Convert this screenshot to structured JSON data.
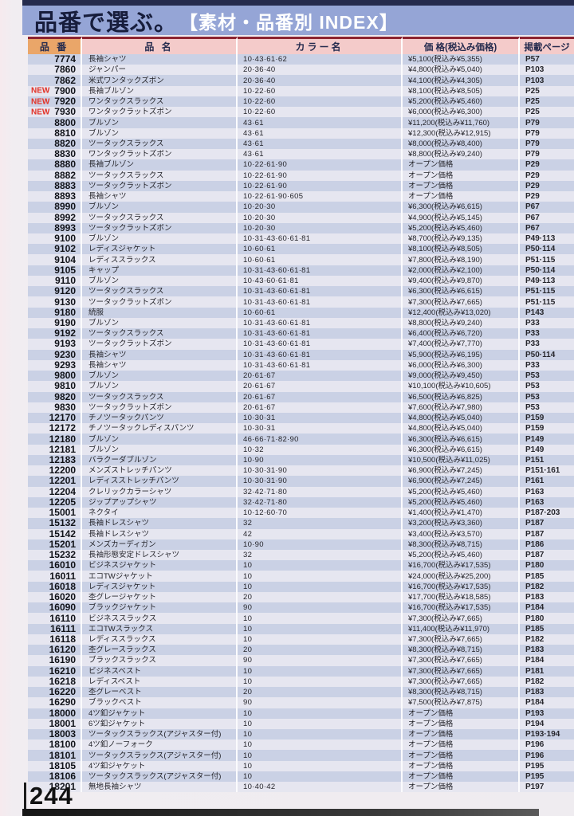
{
  "banner": {
    "title": "品番で選ぶ。",
    "subtitle": "【素材・品番別 INDEX】"
  },
  "footer": {
    "page_number": "244"
  },
  "colors": {
    "topbar": "#252b4d",
    "banner_bg": "#95a5d6",
    "banner_title": "#171d3c",
    "header_rule": "#8c2432",
    "header_num_bg": "#eaa669",
    "header_bg": "#f4cbca",
    "row_odd": "#cad1e5",
    "row_even": "#e6e6f0",
    "new_badge": "#e33126"
  },
  "table": {
    "columns": [
      "品 番",
      "品 名",
      "カラー名",
      "価 格(税込み価格)",
      "掲載ページ"
    ],
    "new_label": "NEW",
    "rows": [
      {
        "num": "7774",
        "name": "長袖シャツ",
        "colors": "10·43·61·62",
        "price": "¥5,100(税込み¥5,355)",
        "page": "P57"
      },
      {
        "num": "7860",
        "name": "ジャンパー",
        "colors": "20·36·40",
        "price": "¥4,800(税込み¥5,040)",
        "page": "P103"
      },
      {
        "num": "7862",
        "name": "米式ワンタックズボン",
        "colors": "20·36·40",
        "price": "¥4,100(税込み¥4,305)",
        "page": "P103"
      },
      {
        "num": "7900",
        "new": true,
        "name": "長袖ブルゾン",
        "colors": "10·22·60",
        "price": "¥8,100(税込み¥8,505)",
        "page": "P25"
      },
      {
        "num": "7920",
        "new": true,
        "name": "ワンタックスラックス",
        "colors": "10·22·60",
        "price": "¥5,200(税込み¥5,460)",
        "page": "P25"
      },
      {
        "num": "7930",
        "new": true,
        "name": "ワンタックラットズボン",
        "colors": "10·22·60",
        "price": "¥6,000(税込み¥6,300)",
        "page": "P25"
      },
      {
        "num": "8800",
        "name": "ブルゾン",
        "colors": "43·61",
        "price": "¥11,200(税込み¥11,760)",
        "page": "P79"
      },
      {
        "num": "8810",
        "name": "ブルゾン",
        "colors": "43·61",
        "price": "¥12,300(税込み¥12,915)",
        "page": "P79"
      },
      {
        "num": "8820",
        "name": "ツータックスラックス",
        "colors": "43·61",
        "price": "¥8,000(税込み¥8,400)",
        "page": "P79"
      },
      {
        "num": "8830",
        "name": "ワンタックラットズボン",
        "colors": "43·61",
        "price": "¥8,800(税込み¥9,240)",
        "page": "P79"
      },
      {
        "num": "8880",
        "name": "長袖ブルゾン",
        "colors": "10·22·61·90",
        "price": "オープン価格",
        "page": "P29"
      },
      {
        "num": "8882",
        "name": "ツータックスラックス",
        "colors": "10·22·61·90",
        "price": "オープン価格",
        "page": "P29"
      },
      {
        "num": "8883",
        "name": "ツータックラットズボン",
        "colors": "10·22·61·90",
        "price": "オープン価格",
        "page": "P29"
      },
      {
        "num": "8893",
        "name": "長袖シャツ",
        "colors": "10·22·61·90·605",
        "price": "オープン価格",
        "page": "P29"
      },
      {
        "num": "8990",
        "name": "ブルゾン",
        "colors": "10·20·30",
        "price": "¥6,300(税込み¥6,615)",
        "page": "P67"
      },
      {
        "num": "8992",
        "name": "ツータックスラックス",
        "colors": "10·20·30",
        "price": "¥4,900(税込み¥5,145)",
        "page": "P67"
      },
      {
        "num": "8993",
        "name": "ツータックラットズボン",
        "colors": "10·20·30",
        "price": "¥5,200(税込み¥5,460)",
        "page": "P67"
      },
      {
        "num": "9100",
        "name": "ブルゾン",
        "colors": "10·31·43·60·61·81",
        "price": "¥8,700(税込み¥9,135)",
        "page": "P49·113"
      },
      {
        "num": "9102",
        "name": "レディスジャケット",
        "colors": "10·60·61",
        "price": "¥8,100(税込み¥8,505)",
        "page": "P50·114"
      },
      {
        "num": "9104",
        "name": "レディススラックス",
        "colors": "10·60·61",
        "price": "¥7,800(税込み¥8,190)",
        "page": "P51·115"
      },
      {
        "num": "9105",
        "name": "キャップ",
        "colors": "10·31·43·60·61·81",
        "price": "¥2,000(税込み¥2,100)",
        "page": "P50·114"
      },
      {
        "num": "9110",
        "name": "ブルゾン",
        "colors": "10·43·60·61·81",
        "price": "¥9,400(税込み¥9,870)",
        "page": "P49·113"
      },
      {
        "num": "9120",
        "name": "ツータックスラックス",
        "colors": "10·31·43·60·61·81",
        "price": "¥6,300(税込み¥6,615)",
        "page": "P51·115"
      },
      {
        "num": "9130",
        "name": "ツータックラットズボン",
        "colors": "10·31·43·60·61·81",
        "price": "¥7,300(税込み¥7,665)",
        "page": "P51·115"
      },
      {
        "num": "9180",
        "name": "続服",
        "colors": "10·60·61",
        "price": "¥12,400(税込み¥13,020)",
        "page": "P143"
      },
      {
        "num": "9190",
        "name": "ブルゾン",
        "colors": "10·31·43·60·61·81",
        "price": "¥8,800(税込み¥9,240)",
        "page": "P33"
      },
      {
        "num": "9192",
        "name": "ツータックスラックス",
        "colors": "10·31·43·60·61·81",
        "price": "¥6,400(税込み¥6,720)",
        "page": "P33"
      },
      {
        "num": "9193",
        "name": "ツータックラットズボン",
        "colors": "10·31·43·60·61·81",
        "price": "¥7,400(税込み¥7,770)",
        "page": "P33"
      },
      {
        "num": "9230",
        "name": "長袖シャツ",
        "colors": "10·31·43·60·61·81",
        "price": "¥5,900(税込み¥6,195)",
        "page": "P50·114"
      },
      {
        "num": "9293",
        "name": "長袖シャツ",
        "colors": "10·31·43·60·61·81",
        "price": "¥6,000(税込み¥6,300)",
        "page": "P33"
      },
      {
        "num": "9800",
        "name": "ブルゾン",
        "colors": "20·61·67",
        "price": "¥9,000(税込み¥9,450)",
        "page": "P53"
      },
      {
        "num": "9810",
        "name": "ブルゾン",
        "colors": "20·61·67",
        "price": "¥10,100(税込み¥10,605)",
        "page": "P53"
      },
      {
        "num": "9820",
        "name": "ツータックスラックス",
        "colors": "20·61·67",
        "price": "¥6,500(税込み¥6,825)",
        "page": "P53"
      },
      {
        "num": "9830",
        "name": "ツータックラットズボン",
        "colors": "20·61·67",
        "price": "¥7,600(税込み¥7,980)",
        "page": "P53"
      },
      {
        "num": "12170",
        "name": "チノツータックパンツ",
        "colors": "10·30·31",
        "price": "¥4,800(税込み¥5,040)",
        "page": "P159"
      },
      {
        "num": "12172",
        "name": "チノツータックレディスパンツ",
        "colors": "10·30·31",
        "price": "¥4,800(税込み¥5,040)",
        "page": "P159"
      },
      {
        "num": "12180",
        "name": "ブルゾン",
        "colors": "46·66·71·82·90",
        "price": "¥6,300(税込み¥6,615)",
        "page": "P149"
      },
      {
        "num": "12181",
        "name": "ブルゾン",
        "colors": "10·32",
        "price": "¥6,300(税込み¥6,615)",
        "page": "P149"
      },
      {
        "num": "12183",
        "name": "バラクーダブルゾン",
        "colors": "10·90",
        "price": "¥10,500(税込み¥11,025)",
        "page": "P151"
      },
      {
        "num": "12200",
        "name": "メンズストレッチパンツ",
        "colors": "10·30·31·90",
        "price": "¥6,900(税込み¥7,245)",
        "page": "P151·161"
      },
      {
        "num": "12201",
        "name": "レディスストレッチパンツ",
        "colors": "10·30·31·90",
        "price": "¥6,900(税込み¥7,245)",
        "page": "P161"
      },
      {
        "num": "12204",
        "name": "クレリックカラーシャツ",
        "colors": "32·42·71·80",
        "price": "¥5,200(税込み¥5,460)",
        "page": "P163"
      },
      {
        "num": "12205",
        "name": "ジップアップシャツ",
        "colors": "32·42·71·80",
        "price": "¥5,200(税込み¥5,460)",
        "page": "P163"
      },
      {
        "num": "15001",
        "name": "ネクタイ",
        "colors": "10·12·60·70",
        "price": "¥1,400(税込み¥1,470)",
        "page": "P187·203"
      },
      {
        "num": "15132",
        "name": "長袖ドレスシャツ",
        "colors": "32",
        "price": "¥3,200(税込み¥3,360)",
        "page": "P187"
      },
      {
        "num": "15142",
        "name": "長袖ドレスシャツ",
        "colors": "42",
        "price": "¥3,400(税込み¥3,570)",
        "page": "P187"
      },
      {
        "num": "15201",
        "name": "メンズカーディガン",
        "colors": "10·90",
        "price": "¥8,300(税込み¥8,715)",
        "page": "P186"
      },
      {
        "num": "15232",
        "name": "長袖形態安定ドレスシャツ",
        "colors": "32",
        "price": "¥5,200(税込み¥5,460)",
        "page": "P187"
      },
      {
        "num": "16010",
        "name": "ビジネスジャケット",
        "colors": "10",
        "price": "¥16,700(税込み¥17,535)",
        "page": "P180"
      },
      {
        "num": "16011",
        "name": "エコTWジャケット",
        "colors": "10",
        "price": "¥24,000(税込み¥25,200)",
        "page": "P185"
      },
      {
        "num": "16018",
        "name": "レディスジャケット",
        "colors": "10",
        "price": "¥16,700(税込み¥17,535)",
        "page": "P182"
      },
      {
        "num": "16020",
        "name": "杢グレージャケット",
        "colors": "20",
        "price": "¥17,700(税込み¥18,585)",
        "page": "P183"
      },
      {
        "num": "16090",
        "name": "ブラックジャケット",
        "colors": "90",
        "price": "¥16,700(税込み¥17,535)",
        "page": "P184"
      },
      {
        "num": "16110",
        "name": "ビジネススラックス",
        "colors": "10",
        "price": "¥7,300(税込み¥7,665)",
        "page": "P180"
      },
      {
        "num": "16111",
        "name": "エコTWスラックス",
        "colors": "10",
        "price": "¥11,400(税込み¥11,970)",
        "page": "P185"
      },
      {
        "num": "16118",
        "name": "レディススラックス",
        "colors": "10",
        "price": "¥7,300(税込み¥7,665)",
        "page": "P182"
      },
      {
        "num": "16120",
        "name": "杢グレースラックス",
        "colors": "20",
        "price": "¥8,300(税込み¥8,715)",
        "page": "P183"
      },
      {
        "num": "16190",
        "name": "ブラックスラックス",
        "colors": "90",
        "price": "¥7,300(税込み¥7,665)",
        "page": "P184"
      },
      {
        "num": "16210",
        "name": "ビジネスベスト",
        "colors": "10",
        "price": "¥7,300(税込み¥7,665)",
        "page": "P181"
      },
      {
        "num": "16218",
        "name": "レディスベスト",
        "colors": "10",
        "price": "¥7,300(税込み¥7,665)",
        "page": "P182"
      },
      {
        "num": "16220",
        "name": "杢グレーベスト",
        "colors": "20",
        "price": "¥8,300(税込み¥8,715)",
        "page": "P183"
      },
      {
        "num": "16290",
        "name": "ブラックベスト",
        "colors": "90",
        "price": "¥7,500(税込み¥7,875)",
        "page": "P184"
      },
      {
        "num": "18000",
        "name": "4ツ釦ジャケット",
        "colors": "10",
        "price": "オープン価格",
        "page": "P193"
      },
      {
        "num": "18001",
        "name": "6ツ釦ジャケット",
        "colors": "10",
        "price": "オープン価格",
        "page": "P194"
      },
      {
        "num": "18003",
        "name": "ツータックスラックス(アジャスター付)",
        "colors": "10",
        "price": "オープン価格",
        "page": "P193·194"
      },
      {
        "num": "18100",
        "name": "4ツ釦ノーフォーク",
        "colors": "10",
        "price": "オープン価格",
        "page": "P196"
      },
      {
        "num": "18101",
        "name": "ツータックスラックス(アジャスター付)",
        "colors": "10",
        "price": "オープン価格",
        "page": "P196"
      },
      {
        "num": "18105",
        "name": "4ツ釦ジャケット",
        "colors": "10",
        "price": "オープン価格",
        "page": "P195"
      },
      {
        "num": "18106",
        "name": "ツータックスラックス(アジャスター付)",
        "colors": "10",
        "price": "オープン価格",
        "page": "P195"
      },
      {
        "num": "18201",
        "name": "無地長袖シャツ",
        "colors": "10·40·42",
        "price": "オープン価格",
        "page": "P197"
      }
    ]
  }
}
